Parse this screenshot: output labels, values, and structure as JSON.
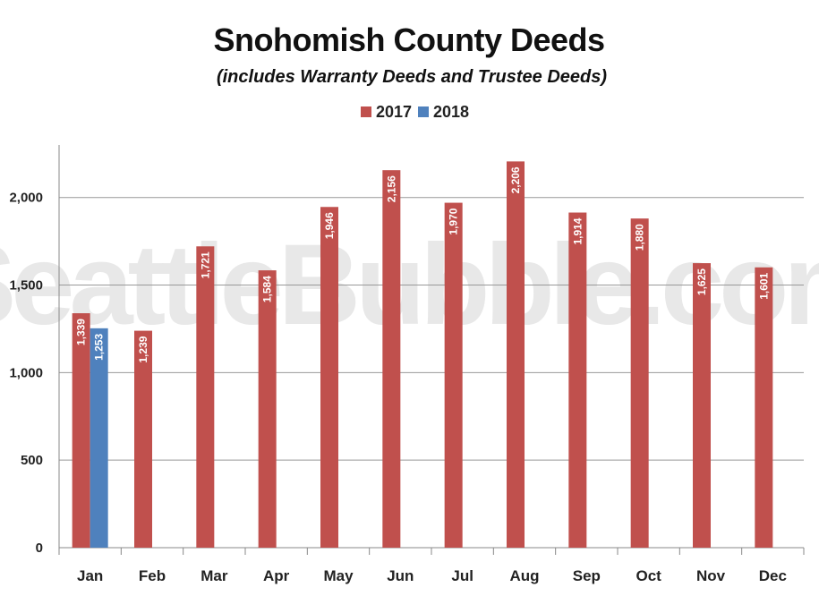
{
  "chart_data": {
    "type": "bar",
    "title": "Snohomish County Deeds",
    "subtitle": "(includes Warranty Deeds and Trustee Deeds)",
    "watermark": "SeattleBubble.com",
    "categories": [
      "Jan",
      "Feb",
      "Mar",
      "Apr",
      "May",
      "Jun",
      "Jul",
      "Aug",
      "Sep",
      "Oct",
      "Nov",
      "Dec"
    ],
    "series": [
      {
        "name": "2017",
        "color": "#c0504d",
        "values": [
          1339,
          1239,
          1721,
          1584,
          1946,
          2156,
          1970,
          2206,
          1914,
          1880,
          1625,
          1601
        ]
      },
      {
        "name": "2018",
        "color": "#4f81bd",
        "values": [
          1253,
          null,
          null,
          null,
          null,
          null,
          null,
          null,
          null,
          null,
          null,
          null
        ]
      }
    ],
    "data_labels": {
      "2017": [
        "1,339",
        "1,239",
        "1,721",
        "1,584",
        "1,946",
        "2,156",
        "1,970",
        "2,206",
        "1,914",
        "1,880",
        "1,625",
        "1,601"
      ],
      "2018": [
        "1,253"
      ]
    },
    "y_ticks": [
      0,
      500,
      1000,
      1500,
      2000
    ],
    "y_tick_labels": [
      "0",
      "500",
      "1,000",
      "1,500",
      "2,000"
    ],
    "xlabel": "",
    "ylabel": "",
    "ylim": [
      0,
      2300
    ],
    "grid": true,
    "legend_position": "top-center"
  }
}
